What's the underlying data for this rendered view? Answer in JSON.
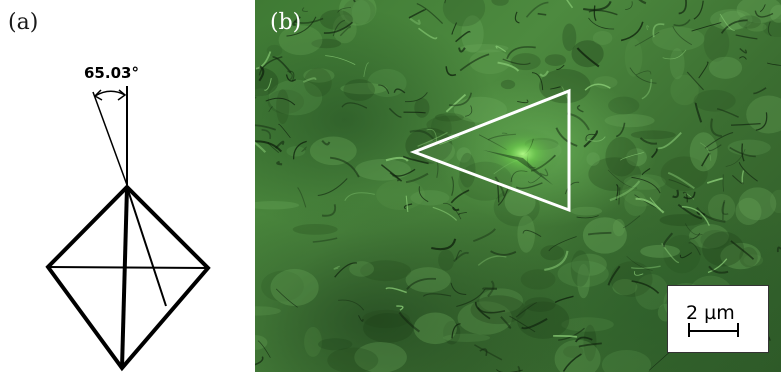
{
  "panel_a": {
    "label": "(a)",
    "angle_label": "65.03°"
  },
  "panel_b": {
    "label": "(b)",
    "scale_bar_label": "2 µm",
    "micrograph_tint": "#3f7a34",
    "highlight_color": "#8cff5a",
    "outline_color": "#ffffff"
  }
}
